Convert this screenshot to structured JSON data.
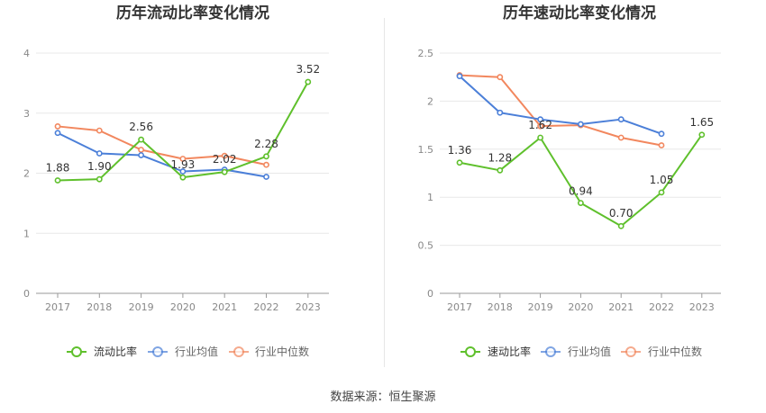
{
  "source_label": "数据来源：恒生聚源",
  "chart_data": [
    {
      "type": "line",
      "title": "历年流动比率变化情况",
      "categories": [
        "2017",
        "2018",
        "2019",
        "2020",
        "2021",
        "2022",
        "2023"
      ],
      "ylim": [
        0,
        4
      ],
      "yticks": [
        0,
        1,
        2,
        3,
        4
      ],
      "ytick_labels": [
        "0",
        "1",
        "2",
        "3",
        "4"
      ],
      "grid": true,
      "legend_position": "bottom",
      "series": [
        {
          "name": "流动比率",
          "color": "#5fc02c",
          "values": [
            1.88,
            1.9,
            2.56,
            1.93,
            2.02,
            2.28,
            3.52
          ],
          "labels": [
            "1.88",
            "1.90",
            "2.56",
            "1.93",
            "2.02",
            "2.28",
            "3.52"
          ]
        },
        {
          "name": "行业均值",
          "color": "#4b7fd8",
          "values": [
            2.67,
            2.33,
            2.3,
            2.03,
            2.06,
            1.94,
            null
          ]
        },
        {
          "name": "行业中位数",
          "color": "#f2875e",
          "values": [
            2.78,
            2.71,
            2.39,
            2.24,
            2.29,
            2.14,
            null
          ]
        }
      ]
    },
    {
      "type": "line",
      "title": "历年速动比率变化情况",
      "categories": [
        "2017",
        "2018",
        "2019",
        "2020",
        "2021",
        "2022",
        "2023"
      ],
      "ylim": [
        0,
        2.5
      ],
      "yticks": [
        0,
        0.5,
        1,
        1.5,
        2,
        2.5
      ],
      "ytick_labels": [
        "0",
        "0.5",
        "1",
        "1.5",
        "2",
        "2.5"
      ],
      "grid": true,
      "legend_position": "bottom",
      "series": [
        {
          "name": "速动比率",
          "color": "#5fc02c",
          "values": [
            1.36,
            1.28,
            1.62,
            0.94,
            0.7,
            1.05,
            1.65
          ],
          "labels": [
            "1.36",
            "1.28",
            "1.62",
            "0.94",
            "0.70",
            "1.05",
            "1.65"
          ]
        },
        {
          "name": "行业均值",
          "color": "#4b7fd8",
          "values": [
            2.26,
            1.88,
            1.81,
            1.76,
            1.81,
            1.66,
            null
          ]
        },
        {
          "name": "行业中位数",
          "color": "#f2875e",
          "values": [
            2.27,
            2.25,
            1.74,
            1.75,
            1.62,
            1.54,
            null
          ]
        }
      ]
    }
  ]
}
